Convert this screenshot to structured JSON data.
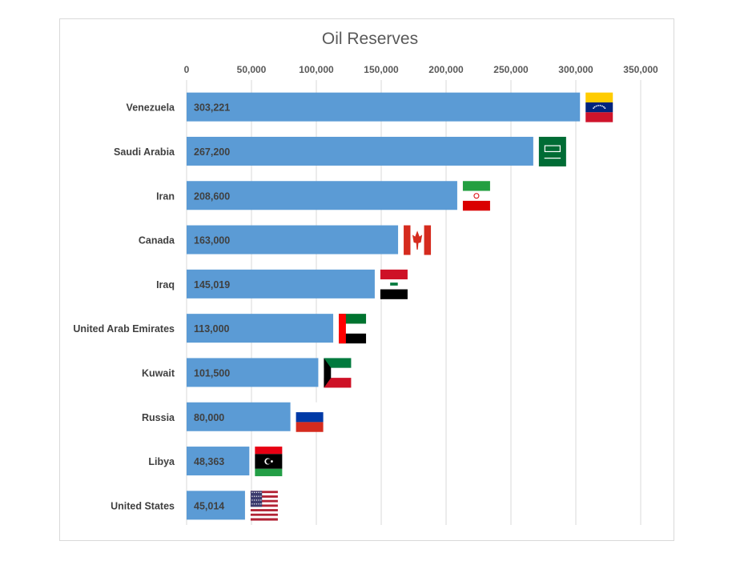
{
  "chart_data": {
    "type": "bar",
    "orientation": "horizontal",
    "title": "Oil Reserves",
    "categories": [
      "Venezuela",
      "Saudi Arabia",
      "Iran",
      "Canada",
      "Iraq",
      "United Arab Emirates",
      "Kuwait",
      "Russia",
      "Libya",
      "United States"
    ],
    "values": [
      303221,
      267200,
      208600,
      163000,
      145019,
      113000,
      101500,
      80000,
      48363,
      45014
    ],
    "data_labels": [
      "303,221",
      "267,200",
      "208,600",
      "163,000",
      "145,019",
      "113,000",
      "101,500",
      "80,000",
      "48,363",
      "45,014"
    ],
    "x_ticks": [
      "0",
      "50,000",
      "100,000",
      "150,000",
      "200,000",
      "250,000",
      "300,000",
      "350,000"
    ],
    "xlim": [
      0,
      350000
    ],
    "x_axis_position": "top",
    "grid": true,
    "flags": [
      "venezuela-flag",
      "saudi-arabia-flag",
      "iran-flag",
      "canada-flag",
      "iraq-flag",
      "uae-flag",
      "kuwait-flag",
      "russia-flag",
      "libya-flag",
      "usa-flag"
    ],
    "colors": {
      "bar": "#5b9bd5",
      "grid": "#d9d9d9",
      "text": "#404040"
    }
  }
}
